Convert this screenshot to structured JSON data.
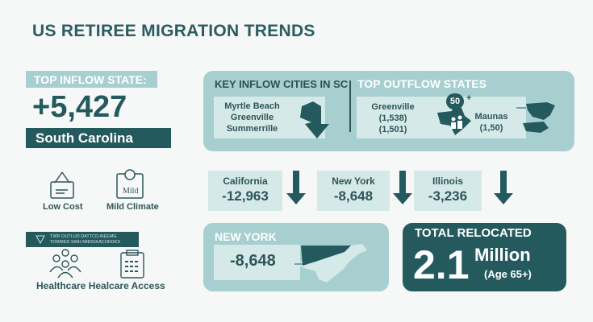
{
  "title": "US RETIREE MIGRATION TRENDS",
  "top_inflow": {
    "label": "TOP INFLOW STATE:",
    "value": "+5,427",
    "state": "South Carolina"
  },
  "factors": [
    {
      "label": "Low Cost",
      "icon": "price-tag-icon"
    },
    {
      "label": "Mild Climate",
      "icon": "climate-calendar-icon",
      "icon_text": "Mild"
    },
    {
      "label": "Healthcare Healcare Access",
      "icon": "people-icon"
    }
  ],
  "banner": {
    "line1": "TWR OUTLUD DATTCD AIEEMG",
    "line2": "TOWRED SWH NNDGKACOKDKS"
  },
  "key_inflow": {
    "heading": "KEY INFLOW CITIES IN SC",
    "cities": [
      "Myrtle Beach",
      "Greenville",
      "Summerrille"
    ]
  },
  "top_outflow": {
    "heading": "TOP OUTFLOW STATES",
    "city": "Greenville",
    "values": [
      "(1,538)",
      "(1,501)"
    ],
    "badge": "50",
    "badge_plus": "+",
    "other_name": "Maunas",
    "other_value": "(1,50)"
  },
  "outflow_states": [
    {
      "name": "California",
      "value": "-12,963"
    },
    {
      "name": "New York",
      "value": "-8,648"
    },
    {
      "name": "Illinois",
      "value": "-3,236"
    }
  ],
  "new_york": {
    "heading": "NEW YORK",
    "value": "-8,648"
  },
  "total": {
    "heading": "TOTAL RELOCATED",
    "number": "2.1",
    "unit": "Million",
    "note": "(Age 65+)"
  },
  "colors": {
    "dark": "#245a5e",
    "light": "#a8cfd0",
    "pale": "#d5e9e9",
    "background": "#f6f8f8"
  }
}
